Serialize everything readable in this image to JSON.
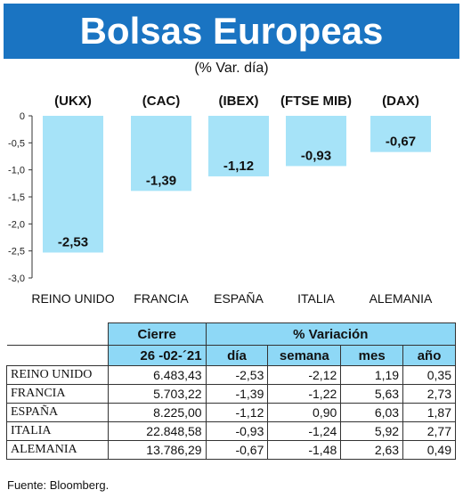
{
  "header": {
    "title": "Bolsas Europeas",
    "subtitle": "(% Var. día)"
  },
  "chart_data": {
    "type": "bar",
    "title": "Bolsas Europeas",
    "subtitle": "(% Var. día)",
    "categories": [
      "REINO UNIDO",
      "FRANCIA",
      "ESPAÑA",
      "ITALIA",
      "ALEMANIA"
    ],
    "indices": [
      "(UKX)",
      "(CAC)",
      "(IBEX)",
      "(FTSE MIB)",
      "(DAX)"
    ],
    "values": [
      -2.53,
      -1.39,
      -1.12,
      -0.93,
      -0.67
    ],
    "value_labels": [
      "-2,53",
      "-1,39",
      "-1,12",
      "-0,93",
      "-0,67"
    ],
    "ylim": [
      -3.0,
      0
    ],
    "yticks": [
      0,
      -0.5,
      -1.0,
      -1.5,
      -2.0,
      -2.5,
      -3.0
    ],
    "ytick_labels": [
      "0",
      "-0,5",
      "-1,0",
      "-1,5",
      "-2,0",
      "-2,5",
      "-3,0"
    ],
    "grid": false,
    "bar_color": "#a6e3f8"
  },
  "table": {
    "header_cierre": "Cierre",
    "header_variacion": "% Variación",
    "date": "26 -02-´21",
    "columns": [
      "día",
      "semana",
      "mes",
      "año"
    ],
    "rows": [
      {
        "name": "REINO UNIDO",
        "cierre": "6.483,43",
        "dia": "-2,53",
        "semana": "-2,12",
        "mes": "1,19",
        "ano": "0,35"
      },
      {
        "name": "FRANCIA",
        "cierre": "5.703,22",
        "dia": "-1,39",
        "semana": "-1,22",
        "mes": "5,63",
        "ano": "2,73"
      },
      {
        "name": "ESPAÑA",
        "cierre": "8.225,00",
        "dia": "-1,12",
        "semana": "0,90",
        "mes": "6,03",
        "ano": "1,87"
      },
      {
        "name": "ITALIA",
        "cierre": "22.848,58",
        "dia": "-0,93",
        "semana": "-1,24",
        "mes": "5,92",
        "ano": "2,77"
      },
      {
        "name": "ALEMANIA",
        "cierre": "13.786,29",
        "dia": "-0,67",
        "semana": "-1,48",
        "mes": "2,63",
        "ano": "0,49"
      }
    ]
  },
  "source": "Fuente: Bloomberg.",
  "colors": {
    "header_bg": "#1a74c2",
    "table_header_bg": "#8ed8f6",
    "bar": "#a6e3f8"
  }
}
